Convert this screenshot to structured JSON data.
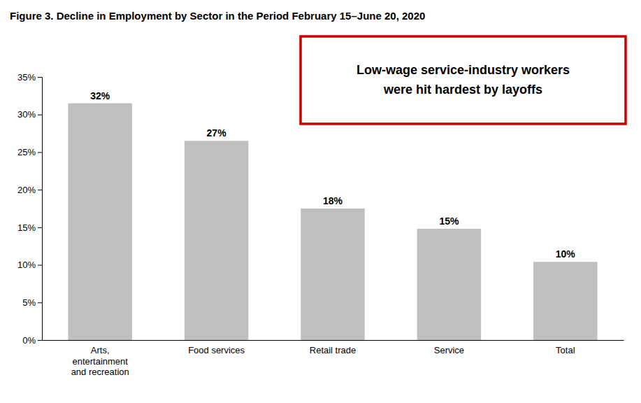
{
  "chart_data": {
    "type": "bar",
    "title": "Figure 3. Decline in Employment by Sector in the Period February 15–June 20, 2020",
    "categories": [
      "Arts,\nentertainment\nand recreation",
      "Food services",
      "Retail trade",
      "Service",
      "Total"
    ],
    "values": [
      31.5,
      26.5,
      17.5,
      14.8,
      10.4
    ],
    "value_labels": [
      "32%",
      "27%",
      "18%",
      "15%",
      "10%"
    ],
    "data_labels": true,
    "color": "#c0bfbf",
    "ylim": [
      0,
      35
    ],
    "yticks": [
      {
        "value": 0,
        "label": "0%"
      },
      {
        "value": 5,
        "label": "5%"
      },
      {
        "value": 10,
        "label": "10%"
      },
      {
        "value": 15,
        "label": "15%"
      },
      {
        "value": 20,
        "label": "20%"
      },
      {
        "value": 25,
        "label": "25%"
      },
      {
        "value": 30,
        "label": "30%"
      },
      {
        "value": 35,
        "label": "35%"
      }
    ],
    "grid": false,
    "annotation": "Low-wage service-industry workers\nwere hit hardest by layoffs"
  }
}
